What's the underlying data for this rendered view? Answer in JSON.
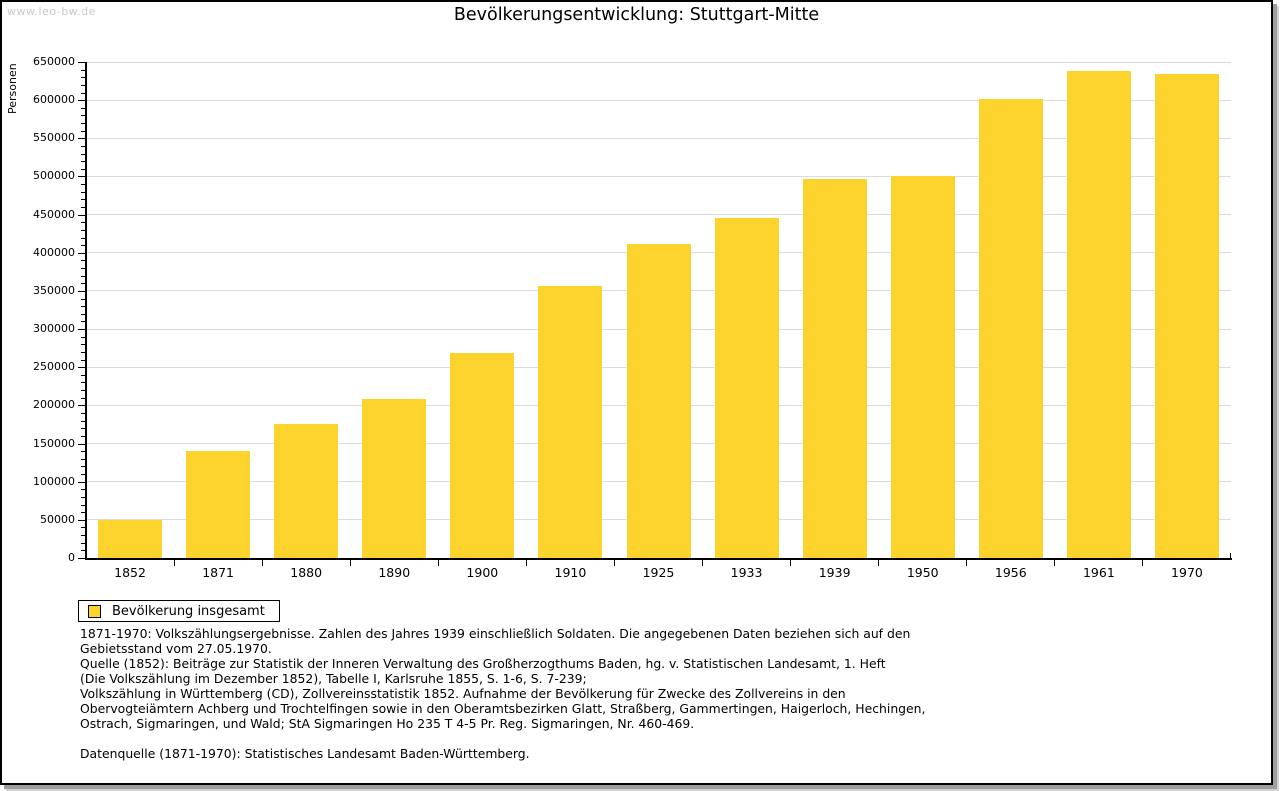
{
  "watermark": "www.leo-bw.de",
  "title": "Bevölkerungsentwicklung: Stuttgart-Mitte",
  "legend": {
    "label": "Bevölkerung insgesamt"
  },
  "notes": [
    "1871-1970: Volkszählungsergebnisse. Zahlen des Jahres 1939 einschließlich Soldaten. Die angegebenen Daten beziehen sich auf den",
    "Gebietsstand vom 27.05.1970.",
    "Quelle (1852): Beiträge zur Statistik der Inneren Verwaltung des Großherzogthums Baden, hg. v. Statistischen Landesamt, 1. Heft",
    "(Die Volkszählung im Dezember 1852), Tabelle I, Karlsruhe 1855, S. 1-6, S. 7-239;",
    "Volkszählung in Württemberg (CD), Zollvereinsstatistik 1852. Aufnahme der Bevölkerung für Zwecke des Zollvereins in den",
    "Obervogteiämtern Achberg und Trochtelfingen sowie in den Oberamtsbezirken Glatt, Straßberg, Gammertingen, Haigerloch, Hechingen,",
    "Ostrach, Sigmaringen, und Wald; StA Sigmaringen Ho 235 T 4-5 Pr. Reg. Sigmaringen, Nr. 460-469.",
    "",
    "Datenquelle (1871-1970): Statistisches Landesamt Baden-Württemberg."
  ],
  "chart_data": {
    "type": "bar",
    "title": "Bevölkerungsentwicklung: Stuttgart-Mitte",
    "xlabel": "",
    "ylabel": "Personen",
    "categories": [
      "1852",
      "1871",
      "1880",
      "1890",
      "1900",
      "1910",
      "1925",
      "1933",
      "1939",
      "1950",
      "1956",
      "1961",
      "1970"
    ],
    "series": [
      {
        "name": "Bevölkerung insgesamt",
        "values": [
          50000,
          140000,
          176000,
          209000,
          268000,
          357000,
          412000,
          445000,
          497000,
          500000,
          602000,
          638000,
          634000
        ]
      }
    ],
    "ylim": [
      0,
      650000
    ],
    "ytick_step": 50000,
    "ytick_minor_step": 10000,
    "grid": "horizontal-major",
    "legend_position": "bottom-left",
    "bar_color": "#fcd32d",
    "grid_color": "#dcdcdc",
    "axis_color": "#000000"
  }
}
